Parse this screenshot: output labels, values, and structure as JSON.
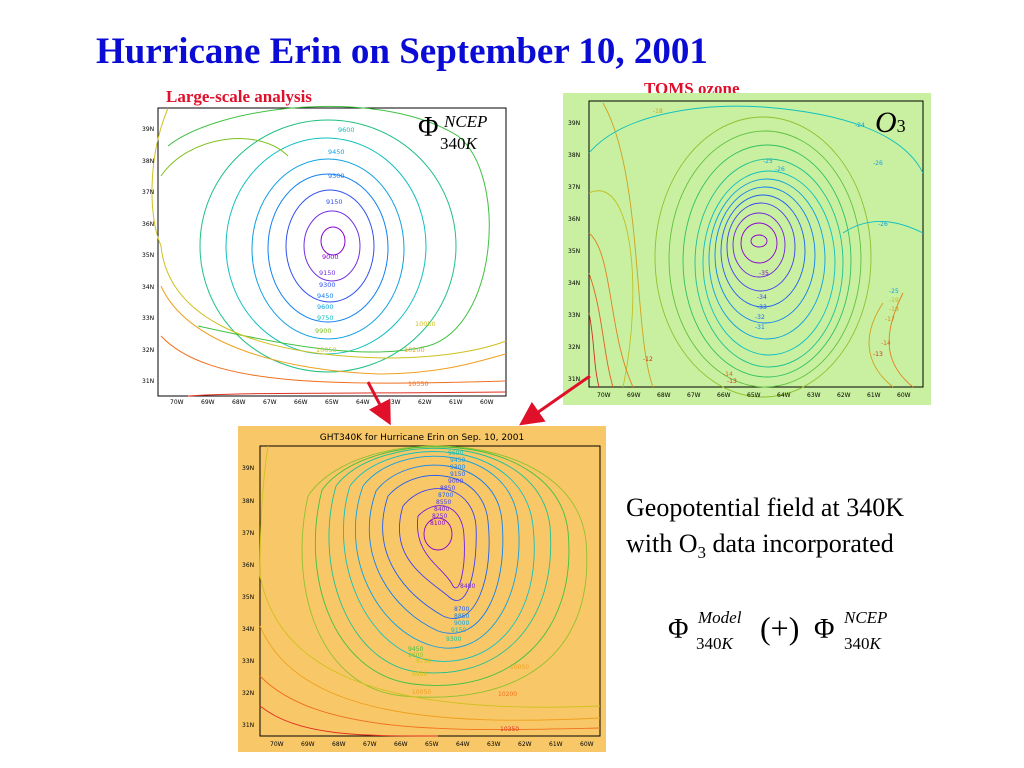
{
  "title": "Hurricane Erin on September 10, 2001",
  "labels": {
    "large_scale": "Large-scale analysis",
    "toms": "TOMS ozone"
  },
  "math": {
    "phi": "Φ",
    "ncep": "NCEP",
    "k340": "340",
    "k": "K",
    "o": "O",
    "o_sub": "3",
    "model": "Model",
    "plus": "(+)"
  },
  "panel3_title": "GHT340K for Hurricane Erin on Sep. 10, 2001",
  "caption": {
    "line1": "Geopotential field at 340K",
    "line2_prefix": "with O",
    "line2_sub": "3",
    "line2_suffix": " data incorporated"
  },
  "axes": {
    "lat_ticks": [
      "39N",
      "38N",
      "37N",
      "36N",
      "35N",
      "34N",
      "33N",
      "32N",
      "31N"
    ],
    "lon_ticks": [
      "70W",
      "69W",
      "68W",
      "67W",
      "66W",
      "65W",
      "64W",
      "63W",
      "62W",
      "61W",
      "60W"
    ]
  },
  "contour_labels_panel1": [
    "9600",
    "9450",
    "9300",
    "9150",
    "9000",
    "9150",
    "9300",
    "9450",
    "9600",
    "9750",
    "9900",
    "10050",
    "10050",
    "10200",
    "10350"
  ],
  "contour_labels_panel2": [
    "-18",
    "-24",
    "-25",
    "-26",
    "-26",
    "-26",
    "-35",
    "-34",
    "-33",
    "-32",
    "-31",
    "-12",
    "-13",
    "-14",
    "-13",
    "-14",
    "-25",
    "-19",
    "-18",
    "-17"
  ],
  "contour_labels_panel3": [
    "9600",
    "9450",
    "9300",
    "9150",
    "9000",
    "8850",
    "8700",
    "8550",
    "8400",
    "8250",
    "8100",
    "8400",
    "8700",
    "8850",
    "9000",
    "9150",
    "9300",
    "9450",
    "9600",
    "9750",
    "9900",
    "10050",
    "10050",
    "10200",
    "10350"
  ],
  "colors": {
    "title": "#0b0bd6",
    "label_red": "#e0102a",
    "panel2_bg": "#c8f0a0",
    "panel3_bg": "#f8c868",
    "arrow": "#e0102a"
  }
}
